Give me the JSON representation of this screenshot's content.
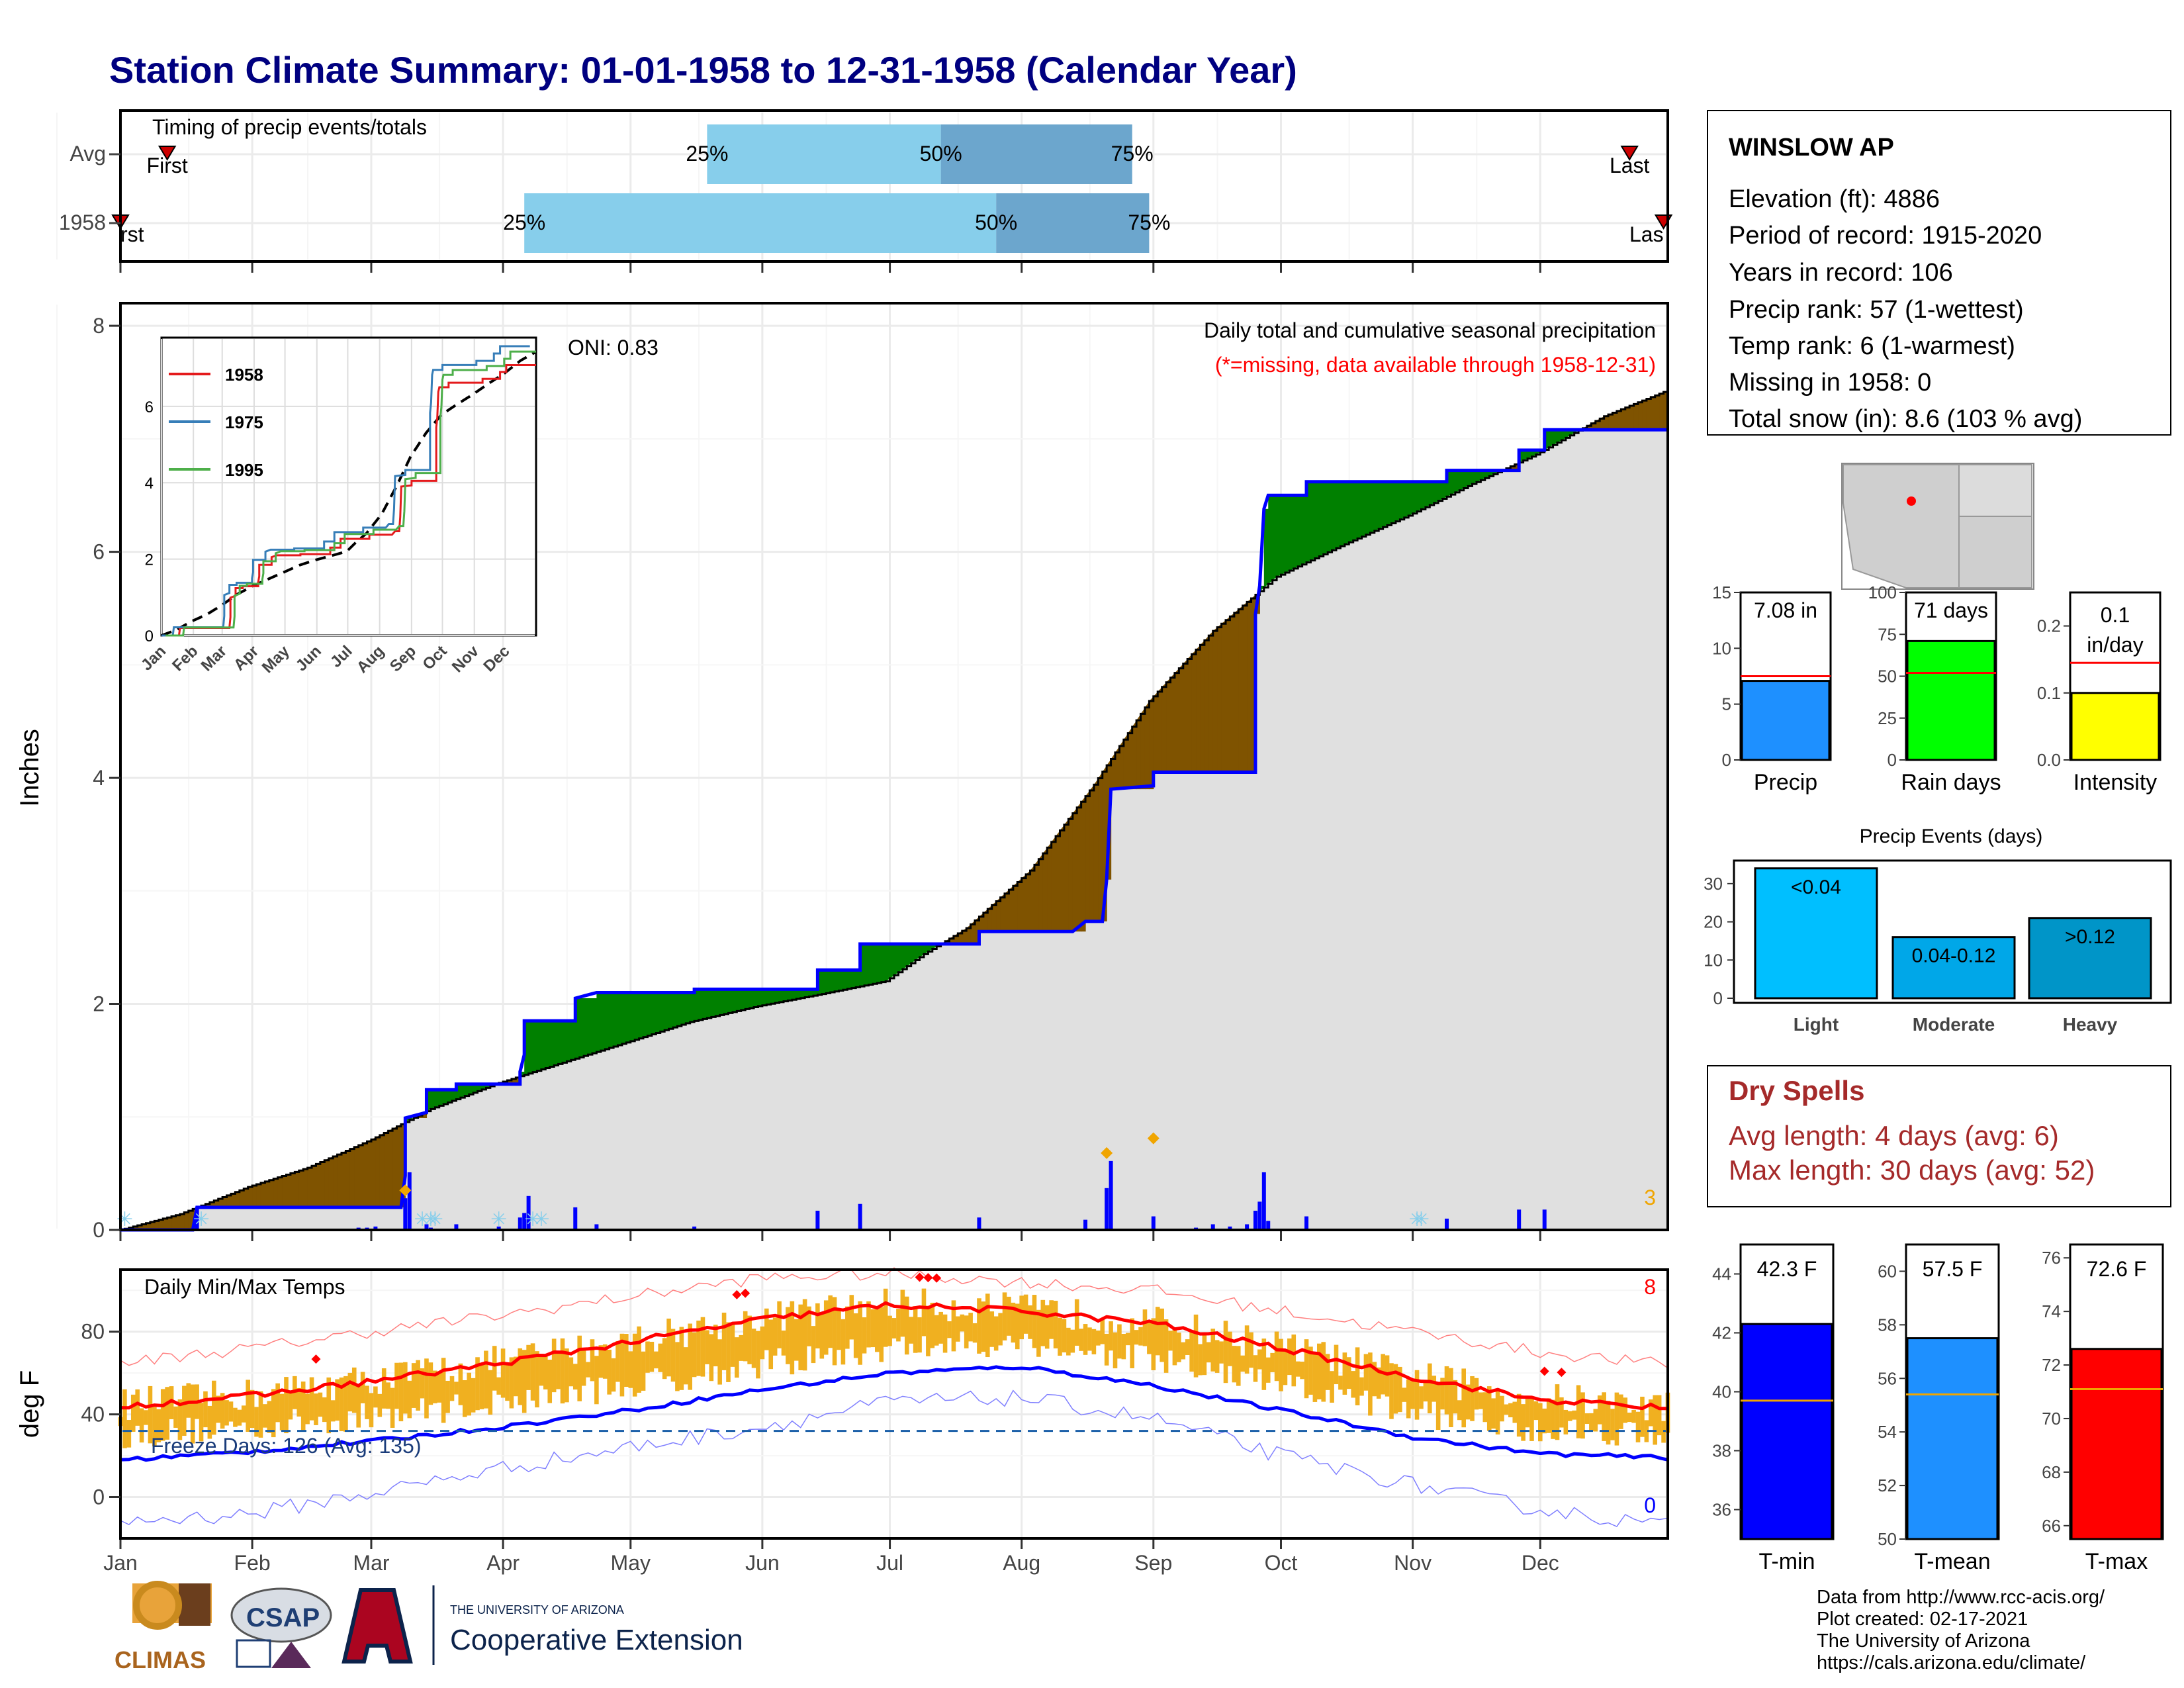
{
  "page_title": "Station Climate Summary: 01-01-1958 to 12-31-1958 (Calendar Year)",
  "colors": {
    "title": "#000080",
    "brown": "#7f5300",
    "green": "#008000",
    "blue_line": "#0000ff",
    "gray_fill": "#e0e0e0",
    "light_blue": "#87ceeb",
    "mid_blue": "#6ca6cd",
    "orange": "#f0a500",
    "red": "#ff0000",
    "dry_red": "#a52a2a",
    "yellow": "#ffff00",
    "lime": "#00ff00",
    "dodger": "#1e90ff"
  },
  "timing": {
    "label": "Timing of precip events/totals",
    "rows": [
      "Avg",
      "1958"
    ],
    "first_label": "First",
    "last_label": "Last",
    "first_label_cut": "rst",
    "last_label_cut": "Las",
    "p25": "25%",
    "p50": "50%",
    "p75": "75%",
    "avg": {
      "first": "Jan 12",
      "p25": "May 19",
      "p50": "Jul 13",
      "p75": "Aug 27",
      "last": "Dec 22"
    },
    "y1958": {
      "first": "Jan 1",
      "p25": "Apr 6",
      "p50": "Jul 26",
      "p75": "Aug 31",
      "last": "Dec 30"
    }
  },
  "station": {
    "name": "WINSLOW AP",
    "lines": [
      "Elevation (ft): 4886",
      "Period of record: 1915-2020",
      "Years in record: 106",
      "Precip rank: 57 (1-wettest)",
      "Temp rank: 6 (1-warmest)",
      "Missing in 1958: 0",
      "Total snow (in): 8.6 (103 % avg)"
    ]
  },
  "precip_panel": {
    "ylabel": "Inches",
    "oni": "ONI: 0.83",
    "title": "Daily total and cumulative seasonal precipitation",
    "missing_note": "(*=missing, data available through 1958-12-31)",
    "count_label": "3"
  },
  "temp_panel": {
    "ylabel": "deg F",
    "title": "Daily Min/Max Temps",
    "freeze_label": "Freeze Days: 126 (Avg: 135)",
    "hot_count": "8",
    "cold_count": "0"
  },
  "months": [
    "Jan",
    "Feb",
    "Mar",
    "Apr",
    "May",
    "Jun",
    "Jul",
    "Aug",
    "Sep",
    "Oct",
    "Nov",
    "Dec"
  ],
  "inset": {
    "legend": [
      "1958",
      "1975",
      "1995"
    ],
    "legend_colors": [
      "#e41a1c",
      "#377eb8",
      "#4daf4a"
    ]
  },
  "summary_bars": [
    {
      "label": "Precip",
      "value": 7.08,
      "value_text": "7.08 in",
      "avg": 7.5,
      "ylim": [
        0,
        15
      ],
      "ticks": [
        "0",
        "5",
        "10",
        "15"
      ],
      "color": "#1e90ff"
    },
    {
      "label": "Rain days",
      "value": 71,
      "value_text": "71 days",
      "avg": 52,
      "ylim": [
        0,
        100
      ],
      "ticks": [
        "0",
        "25",
        "50",
        "75",
        "100"
      ],
      "color": "#00ff00"
    },
    {
      "label": "Intensity",
      "value": 0.1,
      "value_text": "0.1 in/day",
      "value_text_1": "0.1",
      "value_text_2": "in/day",
      "avg": 0.145,
      "ylim": [
        0,
        0.25
      ],
      "ticks": [
        "0.0",
        "0.1",
        "0.2"
      ],
      "color": "#ffff00"
    }
  ],
  "precip_events": {
    "title": "Precip Events (days)",
    "categories": [
      "Light",
      "Moderate",
      "Heavy"
    ],
    "values": [
      34,
      16,
      21
    ],
    "labels": [
      "<0.04",
      "0.04-0.12",
      ">0.12"
    ],
    "ticks": [
      "0",
      "10",
      "20",
      "30"
    ],
    "colors": [
      "#00bfff",
      "#00a7e8",
      "#0095c8"
    ]
  },
  "dry_spells": {
    "title": "Dry Spells",
    "avg_line": "Avg length: 4 days (avg: 6)",
    "max_line": "Max length: 30 days (avg: 52)"
  },
  "temp_bars": [
    {
      "label": "T-min",
      "value": 42.3,
      "value_text": "42.3 F",
      "avg": 39.7,
      "ylim": [
        35,
        45
      ],
      "ticks": [
        "36",
        "38",
        "40",
        "42",
        "44"
      ],
      "color": "#0000ff"
    },
    {
      "label": "T-mean",
      "value": 57.5,
      "value_text": "57.5 F",
      "avg": 55.4,
      "ylim": [
        50,
        61
      ],
      "ticks": [
        "50",
        "52",
        "54",
        "56",
        "58",
        "60"
      ],
      "color": "#1e90ff"
    },
    {
      "label": "T-max",
      "value": 72.6,
      "value_text": "72.6 F",
      "avg": 71.1,
      "ylim": [
        65.5,
        76.5
      ],
      "ticks": [
        "66",
        "68",
        "70",
        "72",
        "74",
        "76"
      ],
      "color": "#ff0000"
    }
  ],
  "footer": {
    "lines": [
      "Data from http://www.rcc-acis.org/",
      "Plot created: 02-17-2021",
      "The University of Arizona",
      "https://cals.arizona.edu/climate/"
    ],
    "climas": "CLIMAS",
    "csap": "CSAP",
    "ua_small": "THE UNIVERSITY OF ARIZONA",
    "ua_big": "Cooperative Extension"
  },
  "chart_data": [
    {
      "type": "area",
      "title": "Daily total and cumulative seasonal precipitation",
      "ylabel": "Inches",
      "ylim": [
        0,
        8.2
      ],
      "x_unit": "day of year 1958",
      "cumulative_1958": [
        [
          1,
          0
        ],
        [
          18,
          0
        ],
        [
          19,
          0.2
        ],
        [
          67,
          0.2
        ],
        [
          68,
          0.48
        ],
        [
          68,
          0.99
        ],
        [
          73,
          1.04
        ],
        [
          73,
          1.24
        ],
        [
          80,
          1.24
        ],
        [
          80,
          1.29
        ],
        [
          95,
          1.29
        ],
        [
          95,
          1.4
        ],
        [
          96,
          1.55
        ],
        [
          96,
          1.85
        ],
        [
          108,
          1.85
        ],
        [
          108,
          2.05
        ],
        [
          113,
          2.1
        ],
        [
          136,
          2.1
        ],
        [
          136,
          2.13
        ],
        [
          165,
          2.13
        ],
        [
          165,
          2.3
        ],
        [
          175,
          2.3
        ],
        [
          175,
          2.53
        ],
        [
          203,
          2.53
        ],
        [
          203,
          2.64
        ],
        [
          225,
          2.64
        ],
        [
          228,
          2.73
        ],
        [
          232,
          2.73
        ],
        [
          233,
          3.1
        ],
        [
          234,
          3.9
        ],
        [
          244,
          3.93
        ],
        [
          244,
          4.05
        ],
        [
          268,
          4.05
        ],
        [
          268,
          5.45
        ],
        [
          269,
          5.7
        ],
        [
          270,
          6.38
        ],
        [
          271,
          6.5
        ],
        [
          280,
          6.5
        ],
        [
          280,
          6.62
        ],
        [
          313,
          6.62
        ],
        [
          313,
          6.72
        ],
        [
          330,
          6.72
        ],
        [
          330,
          6.9
        ],
        [
          336,
          6.9
        ],
        [
          336,
          7.08
        ],
        [
          365,
          7.08
        ]
      ],
      "average_cumulative": [
        [
          1,
          0
        ],
        [
          15,
          0.14
        ],
        [
          31,
          0.38
        ],
        [
          45,
          0.55
        ],
        [
          60,
          0.8
        ],
        [
          74,
          1.07
        ],
        [
          90,
          1.3
        ],
        [
          105,
          1.48
        ],
        [
          121,
          1.67
        ],
        [
          135,
          1.84
        ],
        [
          151,
          1.98
        ],
        [
          165,
          2.08
        ],
        [
          181,
          2.2
        ],
        [
          190,
          2.44
        ],
        [
          200,
          2.67
        ],
        [
          215,
          3.18
        ],
        [
          230,
          3.94
        ],
        [
          243,
          4.68
        ],
        [
          258,
          5.3
        ],
        [
          273,
          5.78
        ],
        [
          288,
          6.05
        ],
        [
          304,
          6.32
        ],
        [
          319,
          6.6
        ],
        [
          334,
          6.86
        ],
        [
          350,
          7.2
        ],
        [
          365,
          7.43
        ]
      ],
      "daily_precip": [
        [
          1,
          0.01
        ],
        [
          19,
          0.2
        ],
        [
          57,
          0.02
        ],
        [
          59,
          0.02
        ],
        [
          61,
          0.03
        ],
        [
          68,
          0.28
        ],
        [
          69,
          0.51
        ],
        [
          73,
          0.05
        ],
        [
          74,
          0.02
        ],
        [
          80,
          0.05
        ],
        [
          90,
          0.03
        ],
        [
          95,
          0.11
        ],
        [
          96,
          0.15
        ],
        [
          97,
          0.3
        ],
        [
          108,
          0.2
        ],
        [
          113,
          0.05
        ],
        [
          136,
          0.03
        ],
        [
          165,
          0.17
        ],
        [
          175,
          0.23
        ],
        [
          203,
          0.11
        ],
        [
          228,
          0.09
        ],
        [
          233,
          0.37
        ],
        [
          234,
          0.61
        ],
        [
          244,
          0.12
        ],
        [
          254,
          0.02
        ],
        [
          258,
          0.05
        ],
        [
          262,
          0.03
        ],
        [
          266,
          0.05
        ],
        [
          268,
          0.17
        ],
        [
          269,
          0.25
        ],
        [
          270,
          0.51
        ],
        [
          271,
          0.08
        ],
        [
          280,
          0.12
        ],
        [
          313,
          0.1
        ],
        [
          330,
          0.18
        ],
        [
          336,
          0.18
        ]
      ]
    },
    {
      "type": "line",
      "title": "Daily Min/Max Temps",
      "ylabel": "deg F",
      "ylim": [
        -20,
        110
      ],
      "series": [
        {
          "name": "avg max",
          "x": [
            1,
            32,
            60,
            91,
            121,
            152,
            182,
            213,
            244,
            274,
            305,
            335,
            365
          ],
          "y": [
            44,
            49,
            56,
            65,
            75,
            86,
            93,
            90,
            84,
            72,
            58,
            47,
            43
          ]
        },
        {
          "name": "avg min",
          "x": [
            1,
            32,
            60,
            91,
            121,
            152,
            182,
            213,
            244,
            274,
            305,
            335,
            365
          ],
          "y": [
            18,
            22,
            27,
            34,
            42,
            52,
            60,
            63,
            54,
            42,
            29,
            21,
            19
          ]
        },
        {
          "name": "record max",
          "x": [
            1,
            32,
            60,
            91,
            121,
            152,
            182,
            213,
            244,
            274,
            305,
            335,
            365
          ],
          "y": [
            65,
            72,
            80,
            88,
            97,
            106,
            108,
            104,
            100,
            90,
            80,
            70,
            64
          ]
        },
        {
          "name": "record min",
          "x": [
            1,
            32,
            60,
            91,
            121,
            152,
            182,
            213,
            244,
            274,
            305,
            335,
            365
          ],
          "y": [
            -12,
            -8,
            2,
            14,
            24,
            34,
            46,
            48,
            38,
            20,
            6,
            -6,
            -14
          ]
        }
      ],
      "freeze_threshold": 32
    },
    {
      "type": "bar",
      "title": "Precip Events (days)",
      "categories": [
        "Light",
        "Moderate",
        "Heavy"
      ],
      "values": [
        34,
        16,
        21
      ]
    }
  ]
}
